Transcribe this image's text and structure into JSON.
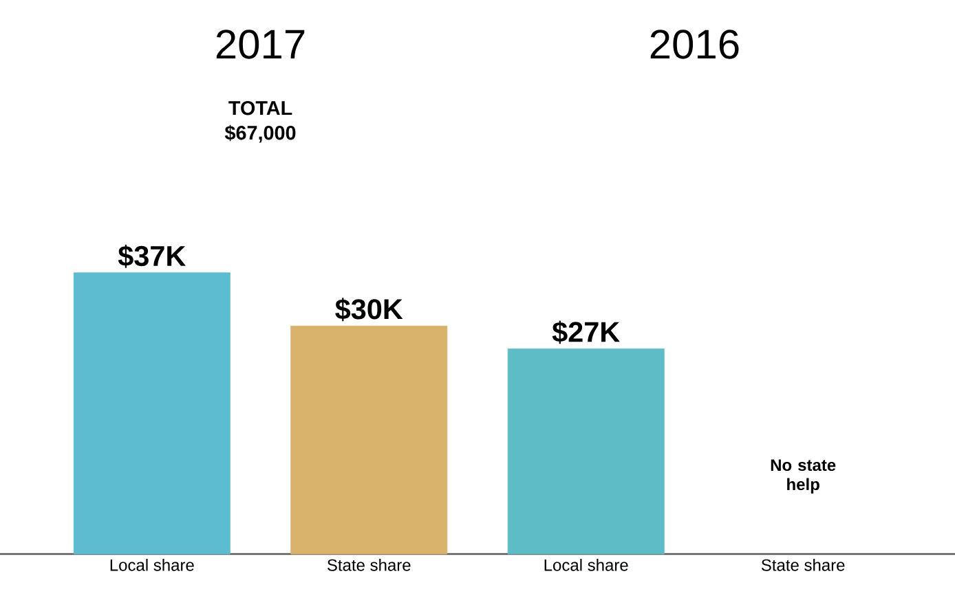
{
  "chart_data": {
    "type": "bar",
    "categories": [
      "Local share",
      "State share",
      "Local share",
      "State share"
    ],
    "values": [
      37,
      30,
      27,
      null
    ],
    "value_labels": [
      "$37K",
      "$30K",
      "$27K",
      null
    ],
    "colors": [
      "#5cbdd0",
      "#d9b36c",
      "#5dbcc6",
      "#5dbcc6"
    ],
    "annotations": [
      "2017",
      "2016",
      "TOTAL $67,000",
      "No state help"
    ]
  }
}
